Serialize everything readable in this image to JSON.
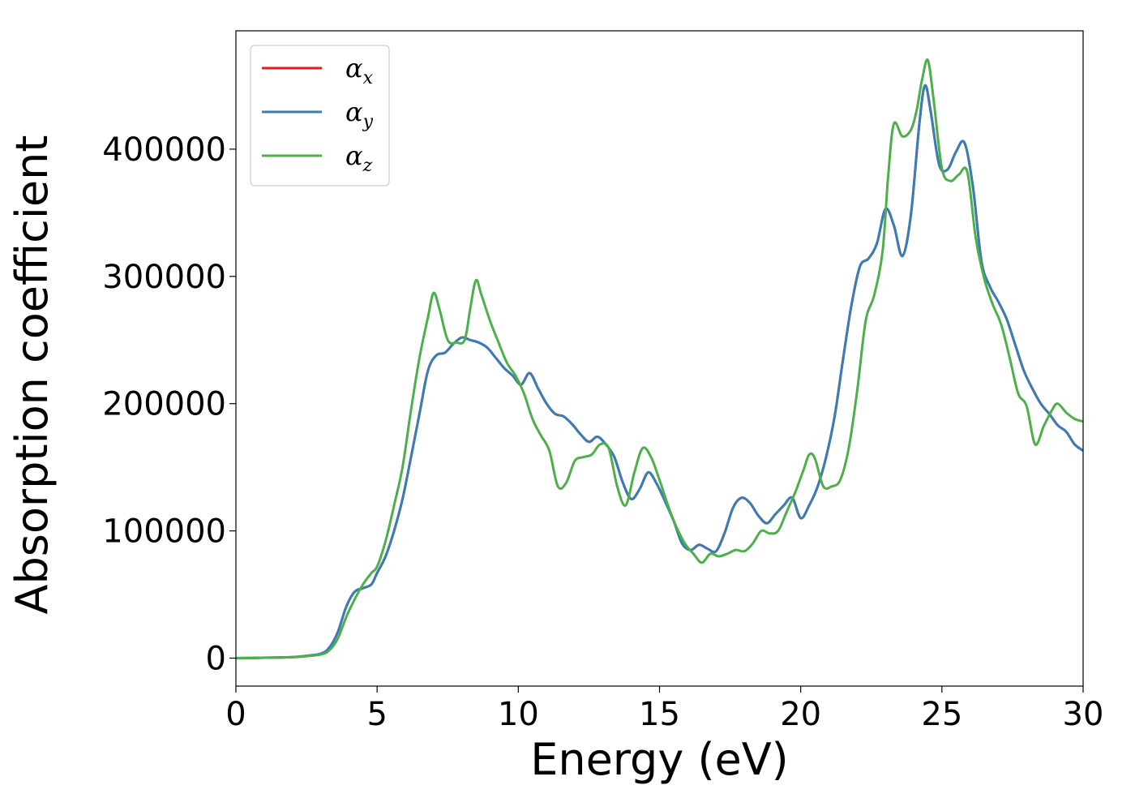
{
  "chart_data": {
    "type": "line",
    "xlabel": "Energy (eV)",
    "ylabel": "Absorption coefficient",
    "xlim": [
      0,
      30
    ],
    "ylim": [
      -22000,
      493000
    ],
    "xticks": [
      0,
      5,
      10,
      15,
      20,
      25,
      30
    ],
    "yticks": [
      0,
      100000,
      200000,
      300000,
      400000
    ],
    "grid": false,
    "legend_position": "top-left",
    "series": [
      {
        "name": "α_x",
        "label_base": "α",
        "label_sub": "x",
        "color": "#e41a1c",
        "x": [
          0,
          1,
          2,
          2.5,
          3,
          3.3,
          3.6,
          3.9,
          4.2,
          4.5,
          4.8,
          5.0,
          5.3,
          5.6,
          5.9,
          6.2,
          6.5,
          6.8,
          7.1,
          7.4,
          7.7,
          8.0,
          8.3,
          8.6,
          8.9,
          9.2,
          9.5,
          9.8,
          10.1,
          10.4,
          10.7,
          11.0,
          11.3,
          11.6,
          11.9,
          12.2,
          12.5,
          12.8,
          13.1,
          13.4,
          13.7,
          14.0,
          14.3,
          14.6,
          14.9,
          15.2,
          15.5,
          15.8,
          16.1,
          16.4,
          16.7,
          17.0,
          17.3,
          17.6,
          17.9,
          18.2,
          18.5,
          18.8,
          19.1,
          19.4,
          19.7,
          20.0,
          20.3,
          20.6,
          20.9,
          21.2,
          21.5,
          21.8,
          22.1,
          22.4,
          22.7,
          23.0,
          23.3,
          23.6,
          23.9,
          24.2,
          24.4,
          24.6,
          24.9,
          25.2,
          25.5,
          25.8,
          26.1,
          26.4,
          26.7,
          27.0,
          27.3,
          27.6,
          27.9,
          28.2,
          28.5,
          28.8,
          29.1,
          29.4,
          29.7,
          30.0
        ],
        "y": [
          0,
          300,
          800,
          1800,
          3500,
          8000,
          20000,
          40000,
          52000,
          55000,
          58000,
          67000,
          80000,
          100000,
          125000,
          158000,
          192000,
          226000,
          238000,
          240000,
          247000,
          252000,
          250000,
          248000,
          244000,
          236000,
          228000,
          222000,
          215000,
          224000,
          212000,
          200000,
          192000,
          190000,
          184000,
          176000,
          170000,
          174000,
          168000,
          158000,
          138000,
          125000,
          133000,
          146000,
          137000,
          123000,
          108000,
          90000,
          85000,
          89000,
          86000,
          84000,
          98000,
          118000,
          126000,
          122000,
          112000,
          106000,
          113000,
          120000,
          126000,
          110000,
          120000,
          135000,
          158000,
          190000,
          235000,
          278000,
          308000,
          314000,
          326000,
          353000,
          340000,
          316000,
          348000,
          420000,
          450000,
          430000,
          388000,
          384000,
          398000,
          405000,
          370000,
          312000,
          292000,
          280000,
          266000,
          246000,
          226000,
          212000,
          200000,
          192000,
          183000,
          178000,
          168000,
          163000
        ]
      },
      {
        "name": "α_y",
        "label_base": "α",
        "label_sub": "y",
        "color": "#377eb8",
        "x": [
          0,
          1,
          2,
          2.5,
          3,
          3.3,
          3.6,
          3.9,
          4.2,
          4.5,
          4.8,
          5.0,
          5.3,
          5.6,
          5.9,
          6.2,
          6.5,
          6.8,
          7.1,
          7.4,
          7.7,
          8.0,
          8.3,
          8.6,
          8.9,
          9.2,
          9.5,
          9.8,
          10.1,
          10.4,
          10.7,
          11.0,
          11.3,
          11.6,
          11.9,
          12.2,
          12.5,
          12.8,
          13.1,
          13.4,
          13.7,
          14.0,
          14.3,
          14.6,
          14.9,
          15.2,
          15.5,
          15.8,
          16.1,
          16.4,
          16.7,
          17.0,
          17.3,
          17.6,
          17.9,
          18.2,
          18.5,
          18.8,
          19.1,
          19.4,
          19.7,
          20.0,
          20.3,
          20.6,
          20.9,
          21.2,
          21.5,
          21.8,
          22.1,
          22.4,
          22.7,
          23.0,
          23.3,
          23.6,
          23.9,
          24.2,
          24.4,
          24.6,
          24.9,
          25.2,
          25.5,
          25.8,
          26.1,
          26.4,
          26.7,
          27.0,
          27.3,
          27.6,
          27.9,
          28.2,
          28.5,
          28.8,
          29.1,
          29.4,
          29.7,
          30.0
        ],
        "y": [
          0,
          300,
          800,
          1800,
          3500,
          8000,
          20000,
          40000,
          52000,
          55000,
          58000,
          67000,
          80000,
          100000,
          125000,
          158000,
          192000,
          226000,
          238000,
          240000,
          247000,
          252000,
          250000,
          248000,
          244000,
          236000,
          228000,
          222000,
          215000,
          224000,
          212000,
          200000,
          192000,
          190000,
          184000,
          176000,
          170000,
          174000,
          168000,
          158000,
          138000,
          125000,
          133000,
          146000,
          137000,
          123000,
          108000,
          90000,
          85000,
          89000,
          86000,
          84000,
          98000,
          118000,
          126000,
          122000,
          112000,
          106000,
          113000,
          120000,
          126000,
          110000,
          120000,
          135000,
          158000,
          190000,
          235000,
          278000,
          308000,
          314000,
          326000,
          353000,
          340000,
          316000,
          348000,
          420000,
          450000,
          430000,
          388000,
          384000,
          398000,
          405000,
          370000,
          312000,
          292000,
          280000,
          266000,
          246000,
          226000,
          212000,
          200000,
          192000,
          183000,
          178000,
          168000,
          163000
        ]
      },
      {
        "name": "α_z",
        "label_base": "α",
        "label_sub": "z",
        "color": "#4daf4a",
        "x": [
          0,
          1,
          2,
          2.5,
          3,
          3.3,
          3.6,
          3.9,
          4.2,
          4.5,
          4.8,
          5.0,
          5.3,
          5.6,
          5.9,
          6.2,
          6.5,
          6.8,
          7.0,
          7.2,
          7.5,
          7.8,
          8.1,
          8.3,
          8.5,
          8.7,
          9.0,
          9.3,
          9.6,
          9.9,
          10.2,
          10.5,
          10.8,
          11.1,
          11.4,
          11.7,
          12.0,
          12.3,
          12.6,
          12.9,
          13.2,
          13.5,
          13.8,
          14.1,
          14.4,
          14.7,
          15.0,
          15.3,
          15.6,
          15.9,
          16.2,
          16.5,
          16.8,
          17.1,
          17.4,
          17.7,
          18.0,
          18.3,
          18.6,
          18.9,
          19.2,
          19.5,
          19.8,
          20.1,
          20.3,
          20.5,
          20.8,
          21.1,
          21.4,
          21.7,
          22.0,
          22.3,
          22.6,
          22.9,
          23.1,
          23.3,
          23.6,
          23.9,
          24.1,
          24.3,
          24.5,
          24.7,
          25.0,
          25.3,
          25.6,
          25.9,
          26.2,
          26.5,
          26.8,
          27.1,
          27.4,
          27.7,
          28.0,
          28.3,
          28.6,
          28.9,
          29.1,
          29.4,
          29.7,
          30.0
        ],
        "y": [
          0,
          300,
          700,
          1500,
          2800,
          6000,
          15000,
          32000,
          46000,
          58000,
          67000,
          72000,
          92000,
          120000,
          150000,
          195000,
          236000,
          268000,
          287000,
          275000,
          250000,
          248000,
          250000,
          275000,
          297000,
          285000,
          265000,
          248000,
          232000,
          222000,
          208000,
          188000,
          175000,
          163000,
          135000,
          138000,
          155000,
          158000,
          160000,
          168000,
          165000,
          135000,
          120000,
          145000,
          165000,
          158000,
          140000,
          120000,
          103000,
          90000,
          82000,
          75000,
          82000,
          80000,
          82000,
          85000,
          84000,
          90000,
          100000,
          98000,
          100000,
          115000,
          130000,
          148000,
          160000,
          157000,
          135000,
          135000,
          140000,
          165000,
          210000,
          265000,
          285000,
          320000,
          380000,
          420000,
          410000,
          415000,
          430000,
          455000,
          470000,
          440000,
          385000,
          375000,
          380000,
          382000,
          330000,
          298000,
          278000,
          262000,
          236000,
          208000,
          198000,
          168000,
          182000,
          195000,
          200000,
          193000,
          188000,
          186000
        ]
      }
    ]
  }
}
